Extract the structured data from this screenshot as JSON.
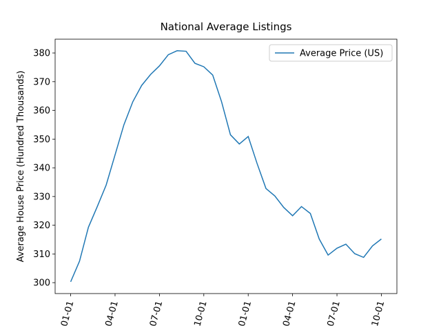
{
  "chart_data": {
    "type": "line",
    "title": "National Average Listings",
    "y_label": "Average House Price (Hundred Thousands)",
    "categories": [
      "01-01",
      null,
      null,
      null,
      null,
      "04-01",
      null,
      null,
      null,
      null,
      "07-01",
      null,
      null,
      null,
      null,
      "10-01",
      null,
      null,
      null,
      null,
      "01-01",
      null,
      null,
      null,
      null,
      "04-01",
      null,
      null,
      null,
      null,
      "07-01",
      null,
      null,
      null,
      null,
      "10-01"
    ],
    "series": [
      {
        "name": "Average Price (US)",
        "color": "#1f77b4",
        "values": [
          300.3,
          307.5,
          319.3,
          326.5,
          334,
          344.5,
          355,
          363,
          368.7,
          372.5,
          375.5,
          379.4,
          380.8,
          380.6,
          376.4,
          375.2,
          372.3,
          363,
          351.5,
          348.3,
          350.9,
          341.5,
          332.8,
          330.2,
          326.2,
          323.3,
          326.5,
          324.1,
          315.2,
          309.6,
          312,
          313.4,
          310.1,
          308.8,
          312.8,
          315.2
        ]
      }
    ],
    "ylim": [
      296.2,
      384.8
    ],
    "yticks": [
      300,
      310,
      320,
      330,
      340,
      350,
      360,
      370,
      380
    ],
    "legend": "upper right",
    "grid": false
  }
}
